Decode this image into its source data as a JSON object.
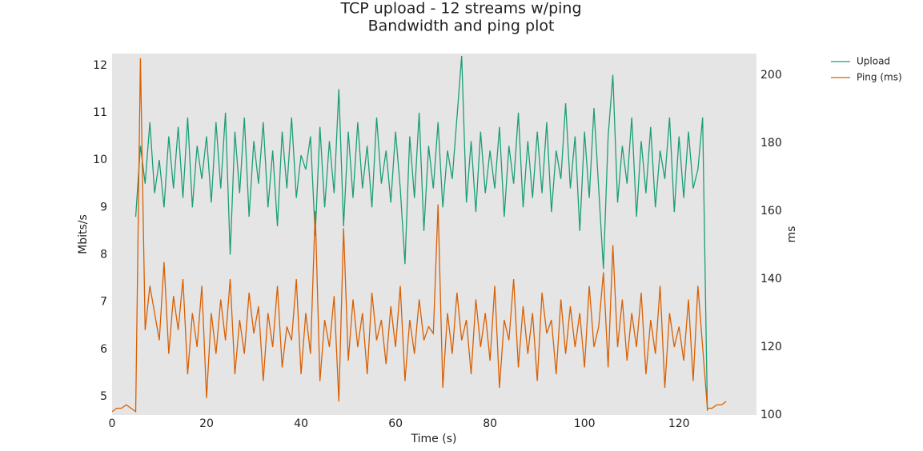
{
  "chart_data": {
    "type": "line",
    "title": "TCP upload - 12 streams w/ping",
    "subtitle": "Bandwidth and ping plot",
    "x_label": "Time (s)",
    "y_label": "Mbits/s",
    "y2_label": "ms",
    "legend": "outside-right",
    "background": "#e5e5e5",
    "xlim": [
      0,
      136.4
    ],
    "xticks": [
      0,
      20,
      40,
      60,
      80,
      100,
      120
    ],
    "ylim": [
      4.61,
      12.25
    ],
    "yticks": [
      5,
      6,
      7,
      8,
      9,
      10,
      11,
      12
    ],
    "y2lim": [
      100,
      206.35
    ],
    "y2ticks": [
      100,
      120,
      140,
      160,
      180,
      200
    ],
    "x": [
      0,
      1,
      2,
      3,
      4,
      5,
      6,
      7,
      8,
      9,
      10,
      11,
      12,
      13,
      14,
      15,
      16,
      17,
      18,
      19,
      20,
      21,
      22,
      23,
      24,
      25,
      26,
      27,
      28,
      29,
      30,
      31,
      32,
      33,
      34,
      35,
      36,
      37,
      38,
      39,
      40,
      41,
      42,
      43,
      44,
      45,
      46,
      47,
      48,
      49,
      50,
      51,
      52,
      53,
      54,
      55,
      56,
      57,
      58,
      59,
      60,
      61,
      62,
      63,
      64,
      65,
      66,
      67,
      68,
      69,
      70,
      71,
      72,
      73,
      74,
      75,
      76,
      77,
      78,
      79,
      80,
      81,
      82,
      83,
      84,
      85,
      86,
      87,
      88,
      89,
      90,
      91,
      92,
      93,
      94,
      95,
      96,
      97,
      98,
      99,
      100,
      101,
      102,
      103,
      104,
      105,
      106,
      107,
      108,
      109,
      110,
      111,
      112,
      113,
      114,
      115,
      116,
      117,
      118,
      119,
      120,
      121,
      122,
      123,
      124,
      125,
      126,
      127,
      128,
      129,
      130
    ],
    "series": [
      {
        "name": "Upload",
        "color": "#1b9e77",
        "values": [
          null,
          null,
          null,
          null,
          null,
          8.8,
          10.3,
          9.5,
          10.8,
          9.3,
          10.0,
          9.0,
          10.5,
          9.4,
          10.7,
          9.2,
          10.9,
          9.0,
          10.3,
          9.6,
          10.5,
          9.1,
          10.8,
          9.4,
          11.0,
          8.0,
          10.6,
          9.3,
          10.9,
          8.8,
          10.4,
          9.5,
          10.8,
          9.0,
          10.2,
          8.6,
          10.6,
          9.4,
          10.9,
          9.2,
          10.1,
          9.8,
          10.5,
          8.4,
          10.7,
          9.0,
          10.4,
          9.3,
          11.5,
          8.6,
          10.6,
          9.2,
          10.8,
          9.4,
          10.3,
          9.0,
          10.9,
          9.5,
          10.2,
          9.1,
          10.6,
          9.4,
          7.8,
          10.5,
          9.2,
          11.0,
          8.5,
          10.3,
          9.4,
          10.8,
          9.0,
          10.2,
          9.6,
          10.9,
          12.2,
          9.1,
          10.4,
          8.9,
          10.6,
          9.3,
          10.2,
          9.4,
          10.7,
          8.8,
          10.3,
          9.5,
          11.0,
          9.0,
          10.4,
          9.2,
          10.6,
          9.3,
          10.8,
          8.9,
          10.2,
          9.6,
          11.2,
          9.4,
          10.5,
          8.5,
          10.6,
          9.2,
          11.1,
          9.4,
          7.7,
          10.5,
          11.8,
          9.1,
          10.3,
          9.5,
          10.9,
          8.8,
          10.4,
          9.3,
          10.7,
          9.0,
          10.2,
          9.6,
          10.9,
          8.9,
          10.5,
          9.2,
          10.6,
          9.4,
          9.8,
          10.9,
          4.7,
          null,
          null,
          null,
          null
        ]
      },
      {
        "name": "Ping (ms)",
        "color": "#d95f02",
        "axis": "y2",
        "values": [
          101,
          102,
          102,
          103,
          102,
          101,
          205,
          125,
          138,
          130,
          122,
          145,
          118,
          135,
          125,
          140,
          112,
          130,
          120,
          138,
          105,
          130,
          118,
          134,
          122,
          140,
          112,
          128,
          118,
          136,
          124,
          132,
          110,
          130,
          120,
          138,
          114,
          126,
          122,
          140,
          112,
          130,
          118,
          160,
          110,
          128,
          120,
          135,
          104,
          155,
          116,
          134,
          120,
          130,
          112,
          136,
          122,
          128,
          115,
          132,
          120,
          138,
          110,
          128,
          118,
          134,
          122,
          126,
          124,
          162,
          108,
          130,
          118,
          136,
          122,
          128,
          112,
          134,
          120,
          130,
          116,
          138,
          108,
          128,
          122,
          140,
          114,
          132,
          118,
          130,
          110,
          136,
          124,
          128,
          112,
          134,
          118,
          132,
          120,
          130,
          114,
          138,
          120,
          126,
          142,
          114,
          150,
          120,
          134,
          116,
          130,
          120,
          136,
          112,
          128,
          118,
          138,
          108,
          130,
          120,
          126,
          116,
          134,
          110,
          138,
          120,
          102,
          102,
          103,
          103,
          104
        ]
      }
    ]
  }
}
